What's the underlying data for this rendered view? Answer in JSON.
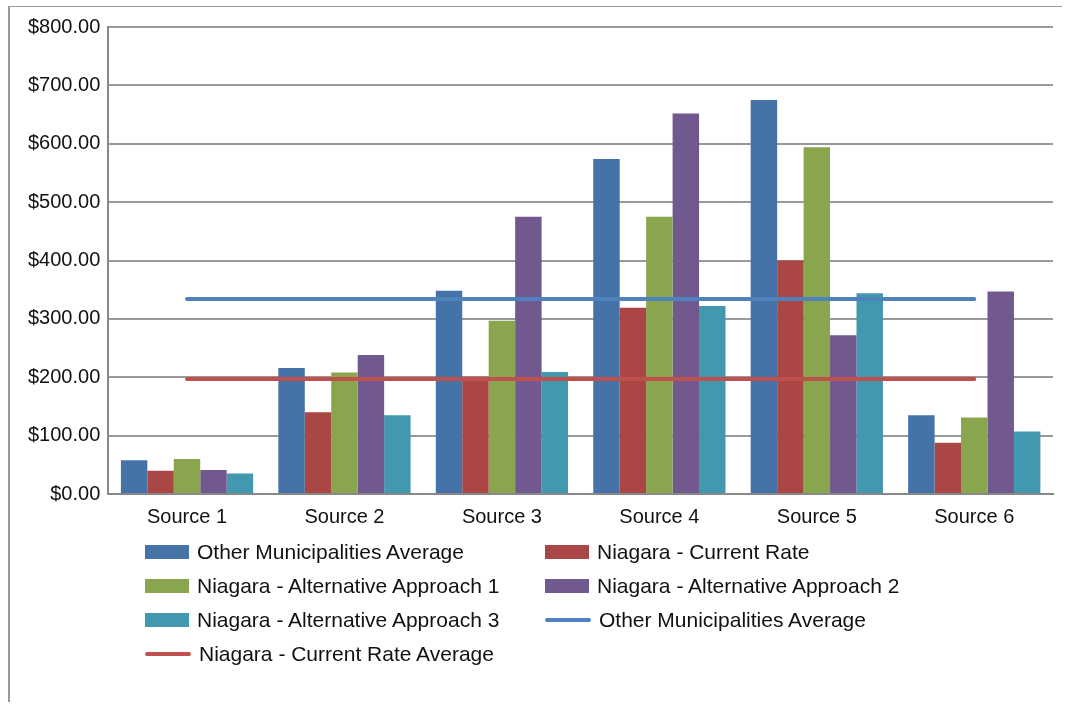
{
  "chart_data": {
    "type": "bar",
    "categories": [
      "Source 1",
      "Source 2",
      "Source 3",
      "Source 4",
      "Source 5",
      "Source 6"
    ],
    "series": [
      {
        "name": "Other Municipalities Average",
        "color": "#4572a7",
        "values": [
          58,
          216,
          348,
          574,
          675,
          135
        ]
      },
      {
        "name": "Niagara - Current Rate",
        "color": "#aa4643",
        "values": [
          40,
          140,
          201,
          319,
          400,
          88
        ]
      },
      {
        "name": "Niagara - Alternative Approach 1",
        "color": "#89a54e",
        "values": [
          60,
          208,
          297,
          475,
          594,
          131
        ]
      },
      {
        "name": "Niagara - Alternative Approach 2",
        "color": "#71588f",
        "values": [
          41,
          238,
          475,
          652,
          272,
          347
        ]
      },
      {
        "name": "Niagara - Alternative Approach 3",
        "color": "#4198af",
        "values": [
          35,
          135,
          209,
          322,
          344,
          107
        ]
      },
      {
        "name": "Other Municipalities Average",
        "type": "line",
        "color": "#4f81bd",
        "values": [
          334,
          334,
          334,
          334,
          334,
          334
        ]
      },
      {
        "name": "Niagara - Current Rate Average",
        "type": "line",
        "color": "#c0504d",
        "values": [
          197,
          197,
          197,
          197,
          197,
          197
        ]
      }
    ],
    "ylim": [
      0,
      800
    ],
    "yticks": [
      {
        "value": 0,
        "label": "$0.00"
      },
      {
        "value": 100,
        "label": "$100.00"
      },
      {
        "value": 200,
        "label": "$200.00"
      },
      {
        "value": 300,
        "label": "$300.00"
      },
      {
        "value": 400,
        "label": "$400.00"
      },
      {
        "value": 500,
        "label": "$500.00"
      },
      {
        "value": 600,
        "label": "$600.00"
      },
      {
        "value": 700,
        "label": "$700.00"
      },
      {
        "value": 800,
        "label": "$800.00"
      }
    ],
    "grid": "y",
    "legend": "bottom",
    "marker": "none",
    "line_style": "solid"
  }
}
